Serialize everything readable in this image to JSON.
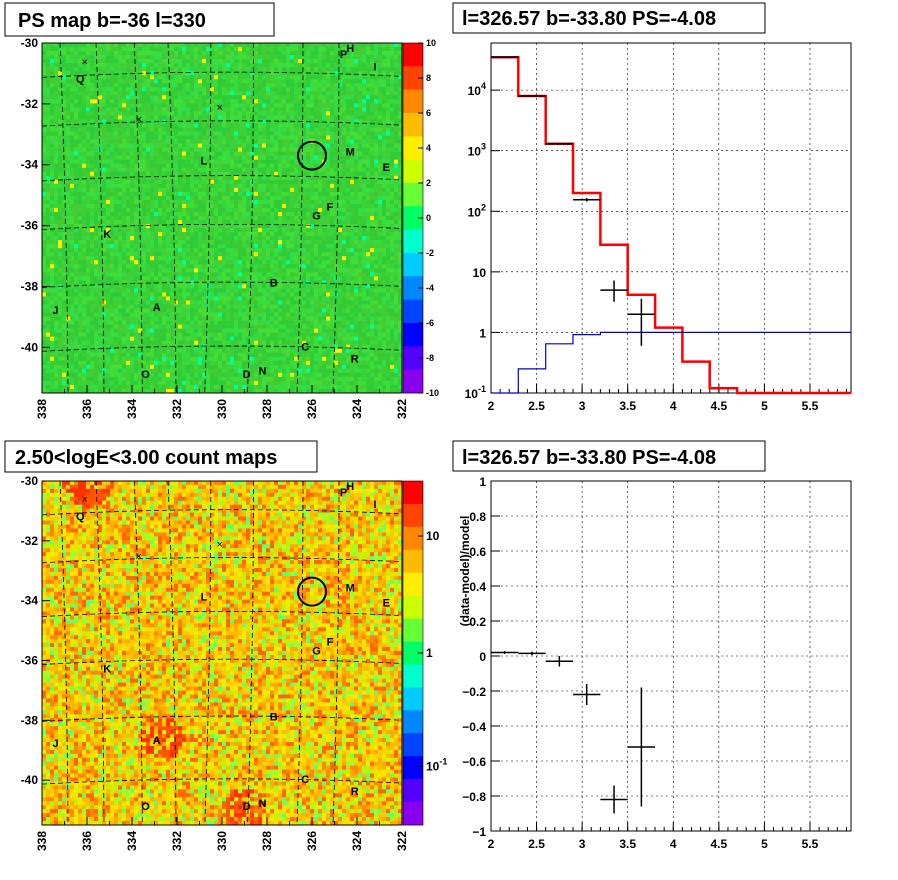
{
  "panels": {
    "tl_title": "PS map b=-36 l=330",
    "tr_title": "l=326.57 b=-33.80 PS=-4.08",
    "bl_title": "2.50<logE<3.00 count maps",
    "br_title": "l=326.57 b=-33.80 PS=-4.08"
  },
  "colors": {
    "green": "#33cc33",
    "red": "#ff0000",
    "blue": "#0000cc",
    "black": "#000000"
  },
  "chart_data": [
    {
      "type": "heatmap",
      "title": "PS map b=-36 l=330",
      "x_ticks": [
        "338",
        "336",
        "334",
        "332",
        "330",
        "328",
        "326",
        "324",
        "322"
      ],
      "y_ticks": [
        "-30",
        "-32",
        "-34",
        "-36",
        "-38",
        "-40"
      ],
      "xlim": [
        338,
        322
      ],
      "ylim": [
        -41.5,
        -30
      ],
      "colorbar_ticks": [
        "10",
        "8",
        "6",
        "4",
        "2",
        "0",
        "-2",
        "-4",
        "-6",
        "-8",
        "-10"
      ],
      "colorbar_range": [
        -10,
        10
      ],
      "sources": [
        {
          "name": "P",
          "l": 324.6,
          "b": -30.5
        },
        {
          "name": "H",
          "l": 324.3,
          "b": -30.3
        },
        {
          "name": "I",
          "l": 323.2,
          "b": -30.9
        },
        {
          "name": "Q",
          "l": 336.3,
          "b": -31.3
        },
        {
          "name": "L",
          "l": 330.8,
          "b": -34.0
        },
        {
          "name": "M",
          "l": 324.3,
          "b": -33.7
        },
        {
          "name": "E",
          "l": 322.7,
          "b": -34.2
        },
        {
          "name": "F",
          "l": 325.2,
          "b": -35.5
        },
        {
          "name": "G",
          "l": 325.8,
          "b": -35.8
        },
        {
          "name": "K",
          "l": 335.1,
          "b": -36.4
        },
        {
          "name": "B",
          "l": 327.7,
          "b": -38.0
        },
        {
          "name": "A",
          "l": 332.9,
          "b": -38.8
        },
        {
          "name": "J",
          "l": 337.4,
          "b": -38.9
        },
        {
          "name": "C",
          "l": 326.3,
          "b": -40.1
        },
        {
          "name": "R",
          "l": 324.1,
          "b": -40.5
        },
        {
          "name": "O",
          "l": 333.4,
          "b": -41.0
        },
        {
          "name": "D",
          "l": 328.9,
          "b": -41.0
        },
        {
          "name": "N",
          "l": 328.2,
          "b": -40.9
        }
      ],
      "crosses": [
        {
          "l": 336.1,
          "b": -30.6
        },
        {
          "l": 333.7,
          "b": -32.5
        },
        {
          "l": 330.1,
          "b": -32.1
        }
      ],
      "circle": {
        "l": 326.0,
        "b": -33.7
      }
    },
    {
      "type": "line",
      "title": "l=326.57 b=-33.80 PS=-4.08",
      "log_y": true,
      "xlim": [
        2,
        5.95
      ],
      "ylim": [
        0.1,
        60000
      ],
      "x_ticks": [
        "2",
        "2.5",
        "3",
        "3.5",
        "4",
        "4.5",
        "5",
        "5.5"
      ],
      "y_ticks": [
        {
          "v": 0.1,
          "t": "10",
          "sup": "-1"
        },
        {
          "v": 1,
          "t": "1",
          "sup": ""
        },
        {
          "v": 10,
          "t": "10",
          "sup": ""
        },
        {
          "v": 100,
          "t": "10",
          "sup": "2"
        },
        {
          "v": 1000,
          "t": "10",
          "sup": "3"
        },
        {
          "v": 10000,
          "t": "10",
          "sup": "4"
        }
      ],
      "series": [
        {
          "kind": "step",
          "color": "#ff0000",
          "edges": [
            2,
            2.3,
            2.6,
            2.9,
            3.2,
            3.5,
            3.8,
            4.1,
            4.4,
            4.7,
            5.95
          ],
          "values": [
            35000,
            8000,
            1300,
            200,
            28,
            4.2,
            1.2,
            0.33,
            0.12,
            0.1
          ]
        },
        {
          "kind": "step",
          "color": "#0000cc",
          "edges": [
            2,
            2.3,
            2.6,
            2.9,
            3.2,
            5.95
          ],
          "values": [
            0.1,
            0.25,
            0.65,
            0.92,
            1.0
          ]
        },
        {
          "kind": "points",
          "color": "#000000",
          "x": [
            2.15,
            2.45,
            2.75,
            3.05,
            3.35,
            3.65
          ],
          "y": [
            35000,
            8000,
            1300,
            155,
            5,
            2
          ],
          "xerr": [
            0.15,
            0.15,
            0.15,
            0.15,
            0.15,
            0.15
          ],
          "ylo": [
            34800,
            7900,
            1270,
            145,
            3.2,
            0.6
          ],
          "yhi": [
            35200,
            8100,
            1330,
            165,
            7.2,
            3.6
          ]
        }
      ]
    },
    {
      "type": "heatmap",
      "title": "2.50<logE<3.00 count maps",
      "x_ticks": [
        "338",
        "336",
        "334",
        "332",
        "330",
        "328",
        "326",
        "324",
        "322"
      ],
      "y_ticks": [
        "-30",
        "-32",
        "-34",
        "-36",
        "-38",
        "-40"
      ],
      "xlim": [
        338,
        322
      ],
      "ylim": [
        -41.5,
        -30
      ],
      "log_colorbar": true,
      "colorbar_ticks": [
        {
          "t": "10",
          "sup": ""
        },
        {
          "t": "1",
          "sup": ""
        },
        {
          "t": "10",
          "sup": "-1"
        }
      ],
      "sources": [
        {
          "name": "P",
          "l": 324.6,
          "b": -30.5
        },
        {
          "name": "H",
          "l": 324.3,
          "b": -30.3
        },
        {
          "name": "I",
          "l": 323.2,
          "b": -30.9
        },
        {
          "name": "Q",
          "l": 336.3,
          "b": -31.3
        },
        {
          "name": "L",
          "l": 330.8,
          "b": -34.0
        },
        {
          "name": "M",
          "l": 324.3,
          "b": -33.7
        },
        {
          "name": "E",
          "l": 322.7,
          "b": -34.2
        },
        {
          "name": "F",
          "l": 325.2,
          "b": -35.5
        },
        {
          "name": "G",
          "l": 325.8,
          "b": -35.8
        },
        {
          "name": "K",
          "l": 335.1,
          "b": -36.4
        },
        {
          "name": "B",
          "l": 327.7,
          "b": -38.0
        },
        {
          "name": "A",
          "l": 332.9,
          "b": -38.8
        },
        {
          "name": "J",
          "l": 337.4,
          "b": -38.9
        },
        {
          "name": "C",
          "l": 326.3,
          "b": -40.1
        },
        {
          "name": "R",
          "l": 324.1,
          "b": -40.5
        },
        {
          "name": "O",
          "l": 333.4,
          "b": -41.0
        },
        {
          "name": "D",
          "l": 328.9,
          "b": -41.0
        },
        {
          "name": "N",
          "l": 328.2,
          "b": -40.9
        }
      ],
      "crosses": [
        {
          "l": 336.1,
          "b": -30.6
        },
        {
          "l": 333.7,
          "b": -32.5
        },
        {
          "l": 330.1,
          "b": -32.1
        }
      ],
      "circle": {
        "l": 326.0,
        "b": -33.7
      }
    },
    {
      "type": "scatter",
      "title": "l=326.57 b=-33.80 PS=-4.08",
      "ylabel": "(data-model)/model",
      "xlim": [
        2,
        5.95
      ],
      "ylim": [
        -1,
        1
      ],
      "x_ticks": [
        "2",
        "2.5",
        "3",
        "3.5",
        "4",
        "4.5",
        "5",
        "5.5"
      ],
      "y_ticks": [
        "1",
        "0.8",
        "0.6",
        "0.4",
        "0.2",
        "0",
        "−0.2",
        "−0.4",
        "−0.6",
        "−0.8",
        "−1"
      ],
      "points": {
        "x": [
          2.15,
          2.45,
          2.75,
          3.05,
          3.35,
          3.65
        ],
        "y": [
          0.02,
          0.015,
          -0.03,
          -0.22,
          -0.82,
          -0.52
        ],
        "xerr": [
          0.15,
          0.15,
          0.15,
          0.15,
          0.15,
          0.15
        ],
        "yerr": [
          0.008,
          0.01,
          0.03,
          0.06,
          0.08,
          0.34
        ]
      }
    }
  ]
}
